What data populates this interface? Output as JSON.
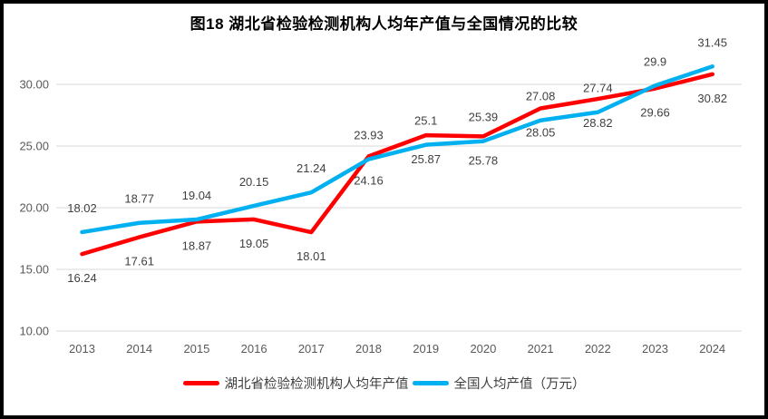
{
  "chart_data": {
    "type": "line",
    "title": "图18  湖北省检验检测机构人均年产值与全国情况的比较",
    "categories": [
      "2013",
      "2014",
      "2015",
      "2016",
      "2017",
      "2018",
      "2019",
      "2020",
      "2021",
      "2022",
      "2023",
      "2024"
    ],
    "series": [
      {
        "name": "湖北省检验检测机构人均年产值",
        "color": "#FF0000",
        "label_position": "below",
        "values": [
          16.24,
          17.61,
          18.87,
          19.05,
          18.01,
          24.16,
          25.87,
          25.78,
          28.05,
          28.82,
          29.66,
          30.82
        ],
        "labels": [
          "16.24",
          "17.61",
          "18.87",
          "19.05",
          "18.01",
          "24.16",
          "25.87",
          "25.78",
          "28.05",
          "28.82",
          "29.66",
          "30.82"
        ]
      },
      {
        "name": "全国人均产值（万元）",
        "color": "#00B0F0",
        "label_position": "above",
        "values": [
          18.02,
          18.77,
          19.04,
          20.15,
          21.24,
          23.93,
          25.1,
          25.39,
          27.08,
          27.74,
          29.9,
          31.45
        ],
        "labels": [
          "18.02",
          "18.77",
          "19.04",
          "20.15",
          "21.24",
          "23.93",
          "25.1",
          "25.39",
          "27.08",
          "27.74",
          "29.9",
          "31.45"
        ]
      }
    ],
    "y_axis": {
      "min": 10,
      "max": 30,
      "step": 5,
      "ticks": [
        {
          "value": 30,
          "label": "30.00"
        },
        {
          "value": 25,
          "label": "25.00"
        },
        {
          "value": 20,
          "label": "20.00"
        },
        {
          "value": 15,
          "label": "15.00"
        },
        {
          "value": 10,
          "label": "10.00"
        }
      ]
    },
    "xlabel": "",
    "ylabel": "",
    "grid": true,
    "legend_position": "bottom",
    "colors": {
      "grid": "#D9D9D9",
      "axis_text": "#595959",
      "data_label_text": "#404040",
      "background": "#FFFFFF",
      "border": "#000000"
    }
  }
}
